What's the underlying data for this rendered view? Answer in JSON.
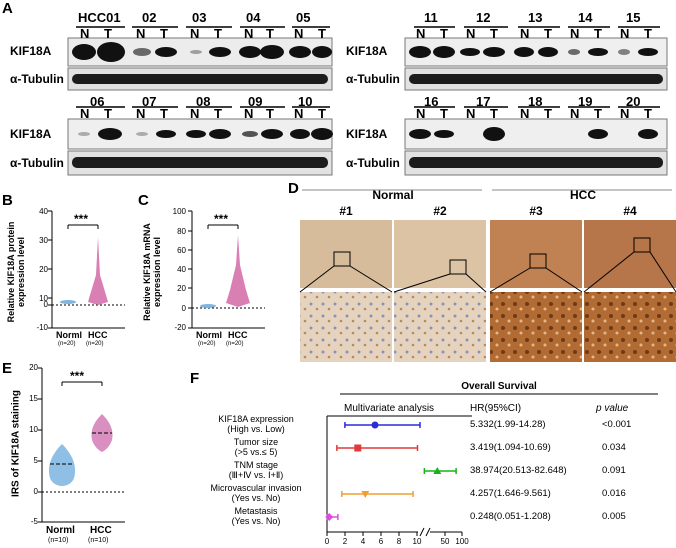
{
  "panels": {
    "A": "A",
    "B": "B",
    "C": "C",
    "D": "D",
    "E": "E",
    "F": "F"
  },
  "blot": {
    "protein": "KIF18A",
    "control": "α-Tubulin",
    "lane_n": "N",
    "lane_t": "T",
    "samples_block1": [
      "HCC01",
      "02",
      "03",
      "04",
      "05"
    ],
    "samples_block2": [
      "11",
      "12",
      "13",
      "14",
      "15"
    ],
    "samples_block3": [
      "06",
      "07",
      "08",
      "09",
      "10"
    ],
    "samples_block4": [
      "16",
      "17",
      "18",
      "19",
      "20"
    ]
  },
  "violin_b": {
    "ylabel": "Relative KIF18A protein expression level",
    "yticks": [
      "40",
      "30",
      "20",
      "10",
      "0",
      "-10"
    ],
    "sig": "***",
    "groups": [
      {
        "name": "Norml",
        "n": "(n=20)"
      },
      {
        "name": "HCC",
        "n": "(n=20)"
      }
    ]
  },
  "violin_c": {
    "ylabel": "Relative KIF18A mRNA expression level",
    "yticks": [
      "100",
      "80",
      "60",
      "40",
      "20",
      "0",
      "-20"
    ],
    "sig": "***",
    "groups": [
      {
        "name": "Norml",
        "n": "(n=20)"
      },
      {
        "name": "HCC",
        "n": "(n=20)"
      }
    ]
  },
  "ihc": {
    "normal_label": "Normal",
    "hcc_label": "HCC",
    "cases": [
      "#1",
      "#2",
      "#3",
      "#4"
    ]
  },
  "violin_e": {
    "ylabel": "IRS of KIF18A staining",
    "yticks": [
      "20",
      "15",
      "10",
      "5",
      "0",
      "-5"
    ],
    "sig": "***",
    "groups": [
      {
        "name": "Norml",
        "n": "(n=10)"
      },
      {
        "name": "HCC",
        "n": "(n=10)"
      }
    ]
  },
  "forest": {
    "title": "Overall Survival",
    "col_method": "Multivariate analysis",
    "col_hr": "HR(95%CI)",
    "col_p": "p value",
    "xticks": [
      "0",
      "2",
      "4",
      "6",
      "8",
      "10",
      "50",
      "100"
    ],
    "rows": [
      {
        "l1": "KIF18A expression",
        "l2": "(High vs. Low)",
        "hr": "5.332(1.99-14.28)",
        "p": "<0.001",
        "color": "#2b2bd9"
      },
      {
        "l1": "Tumor size",
        "l2": "(>5 vs.≤ 5)",
        "hr": "3.419(1.094-10.69)",
        "p": "0.034",
        "color": "#e03b3b"
      },
      {
        "l1": "TNM stage",
        "l2": "(Ⅲ+Ⅳ vs.  Ⅰ+Ⅱ)",
        "hr": "38.974(20.513-82.648)",
        "p": "0.091",
        "color": "#19b319"
      },
      {
        "l1": "Microvascular invasion",
        "l2": "(Yes vs. No)",
        "hr": "4.257(1.646-9.561)",
        "p": "0.016",
        "color": "#f0a030"
      },
      {
        "l1": "Metastasis",
        "l2": "(Yes vs. No)",
        "hr": "0.248(0.051-1.208)",
        "p": "0.005",
        "color": "#e04ae0"
      }
    ]
  },
  "chart_data": [
    {
      "type": "forest",
      "title": "Overall Survival",
      "series": [
        {
          "name": "KIF18A expression",
          "hr": 5.332,
          "lo": 1.99,
          "hi": 14.28
        },
        {
          "name": "Tumor size",
          "hr": 3.419,
          "lo": 1.094,
          "hi": 10.69
        },
        {
          "name": "TNM stage",
          "hr": 38.974,
          "lo": 20.513,
          "hi": 82.648
        },
        {
          "name": "Microvascular invasion",
          "hr": 4.257,
          "lo": 1.646,
          "hi": 9.561
        },
        {
          "name": "Metastasis",
          "hr": 0.248,
          "lo": 0.051,
          "hi": 1.208
        }
      ]
    }
  ]
}
